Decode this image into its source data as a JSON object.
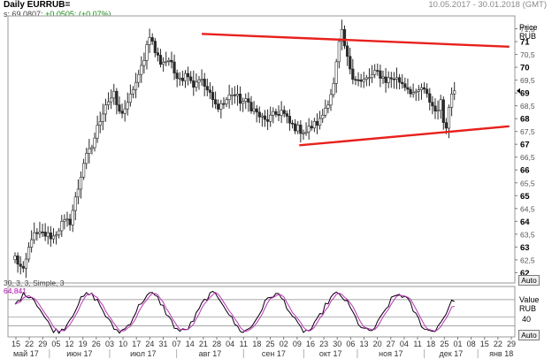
{
  "header": {
    "title": "Daily EURRUB=",
    "date_range": "10.05.2017 - 30.01.2018 (GMT)",
    "ohlc_prefix": "s; 69,0807;",
    "ohlc_change": "+0,0505; (+0,07%)"
  },
  "price_panel": {
    "axis_title_line1": "Price",
    "axis_title_line2": "RUB",
    "auto_label": "Auto"
  },
  "indicator_panel": {
    "params": "30, 3, 3, Simple, 3",
    "value": "64,841",
    "axis_title_line1": "Value",
    "axis_title_line2": "RUB",
    "tick_label": "40",
    "auto_label": "Auto"
  },
  "chart_data": [
    {
      "type": "candlestick",
      "title": "Daily EURRUB=",
      "ylabel": "Price RUB",
      "ylim": [
        61.6,
        72.0
      ],
      "y_ticks": [
        62,
        62.5,
        63,
        63.5,
        64,
        64.5,
        65,
        65.5,
        66,
        66.5,
        67,
        67.5,
        68,
        68.5,
        69,
        69.5,
        70,
        70.5,
        71,
        71.5
      ],
      "last_value": 69.0807,
      "x_ticks": {
        "dates": [
          "15",
          "22",
          "29",
          "05",
          "12",
          "19",
          "26",
          "03",
          "10",
          "17",
          "24",
          "31",
          "07",
          "14",
          "21",
          "28",
          "04",
          "11",
          "18",
          "25",
          "02",
          "09",
          "16",
          "23",
          "30",
          "06",
          "13",
          "20",
          "27",
          "04",
          "11",
          "18",
          "25",
          "01",
          "08",
          "15",
          "22",
          "29"
        ],
        "months": [
          "май 17",
          "июн 17",
          "июл 17",
          "авг 17",
          "сен 17",
          "окт 17",
          "ноя 17",
          "дек 17",
          "янв 18"
        ]
      },
      "anchors": [
        [
          0,
          62.6
        ],
        [
          3,
          62.0
        ],
        [
          6,
          63.4
        ],
        [
          10,
          63.5
        ],
        [
          14,
          63.4
        ],
        [
          17,
          63.9
        ],
        [
          20,
          64.0
        ],
        [
          23,
          65.3
        ],
        [
          25,
          66.3
        ],
        [
          28,
          66.9
        ],
        [
          31,
          68.0
        ],
        [
          33,
          68.6
        ],
        [
          36,
          68.9
        ],
        [
          38,
          68.2
        ],
        [
          41,
          68.5
        ],
        [
          43,
          69.2
        ],
        [
          45,
          69.6
        ],
        [
          47,
          70.4
        ],
        [
          49,
          71.3
        ],
        [
          51,
          70.6
        ],
        [
          53,
          70.2
        ],
        [
          56,
          70.3
        ],
        [
          58,
          69.8
        ],
        [
          61,
          69.6
        ],
        [
          63,
          69.8
        ],
        [
          65,
          69.3
        ],
        [
          67,
          69.6
        ],
        [
          70,
          69.1
        ],
        [
          73,
          68.5
        ],
        [
          76,
          68.6
        ],
        [
          79,
          69.0
        ],
        [
          82,
          68.7
        ],
        [
          85,
          68.6
        ],
        [
          88,
          68.2
        ],
        [
          91,
          67.9
        ],
        [
          94,
          68.1
        ],
        [
          97,
          68.3
        ],
        [
          100,
          67.8
        ],
        [
          103,
          67.6
        ],
        [
          106,
          67.5
        ],
        [
          108,
          67.7
        ],
        [
          111,
          67.9
        ],
        [
          114,
          68.7
        ],
        [
          116,
          69.3
        ],
        [
          118,
          70.9
        ],
        [
          119,
          71.3
        ],
        [
          121,
          70.3
        ],
        [
          123,
          69.7
        ],
        [
          126,
          69.4
        ],
        [
          129,
          69.6
        ],
        [
          132,
          69.8
        ],
        [
          135,
          69.5
        ],
        [
          138,
          69.6
        ],
        [
          141,
          69.4
        ],
        [
          144,
          69.1
        ],
        [
          146,
          68.9
        ],
        [
          148,
          69.2
        ],
        [
          151,
          68.7
        ],
        [
          153,
          68.3
        ],
        [
          155,
          68.6
        ],
        [
          156,
          67.9
        ],
        [
          157,
          67.8
        ],
        [
          158,
          68.4
        ],
        [
          159,
          69.0
        ],
        [
          160,
          69.1
        ]
      ],
      "resistance_line": [
        [
          68.0,
          71.3
        ],
        [
          180,
          70.8
        ]
      ],
      "support_line": [
        [
          103.5,
          66.96
        ],
        [
          180,
          67.7
        ]
      ]
    },
    {
      "type": "line",
      "title": "30, 3, 3, Simple, 3",
      "ylabel": "Value RUB",
      "ylim": [
        -5,
        110
      ],
      "y_ticks": [
        40
      ],
      "last_value": 64.841,
      "series": [
        {
          "color": "#000000"
        },
        {
          "color": "#c030c0"
        }
      ]
    }
  ]
}
